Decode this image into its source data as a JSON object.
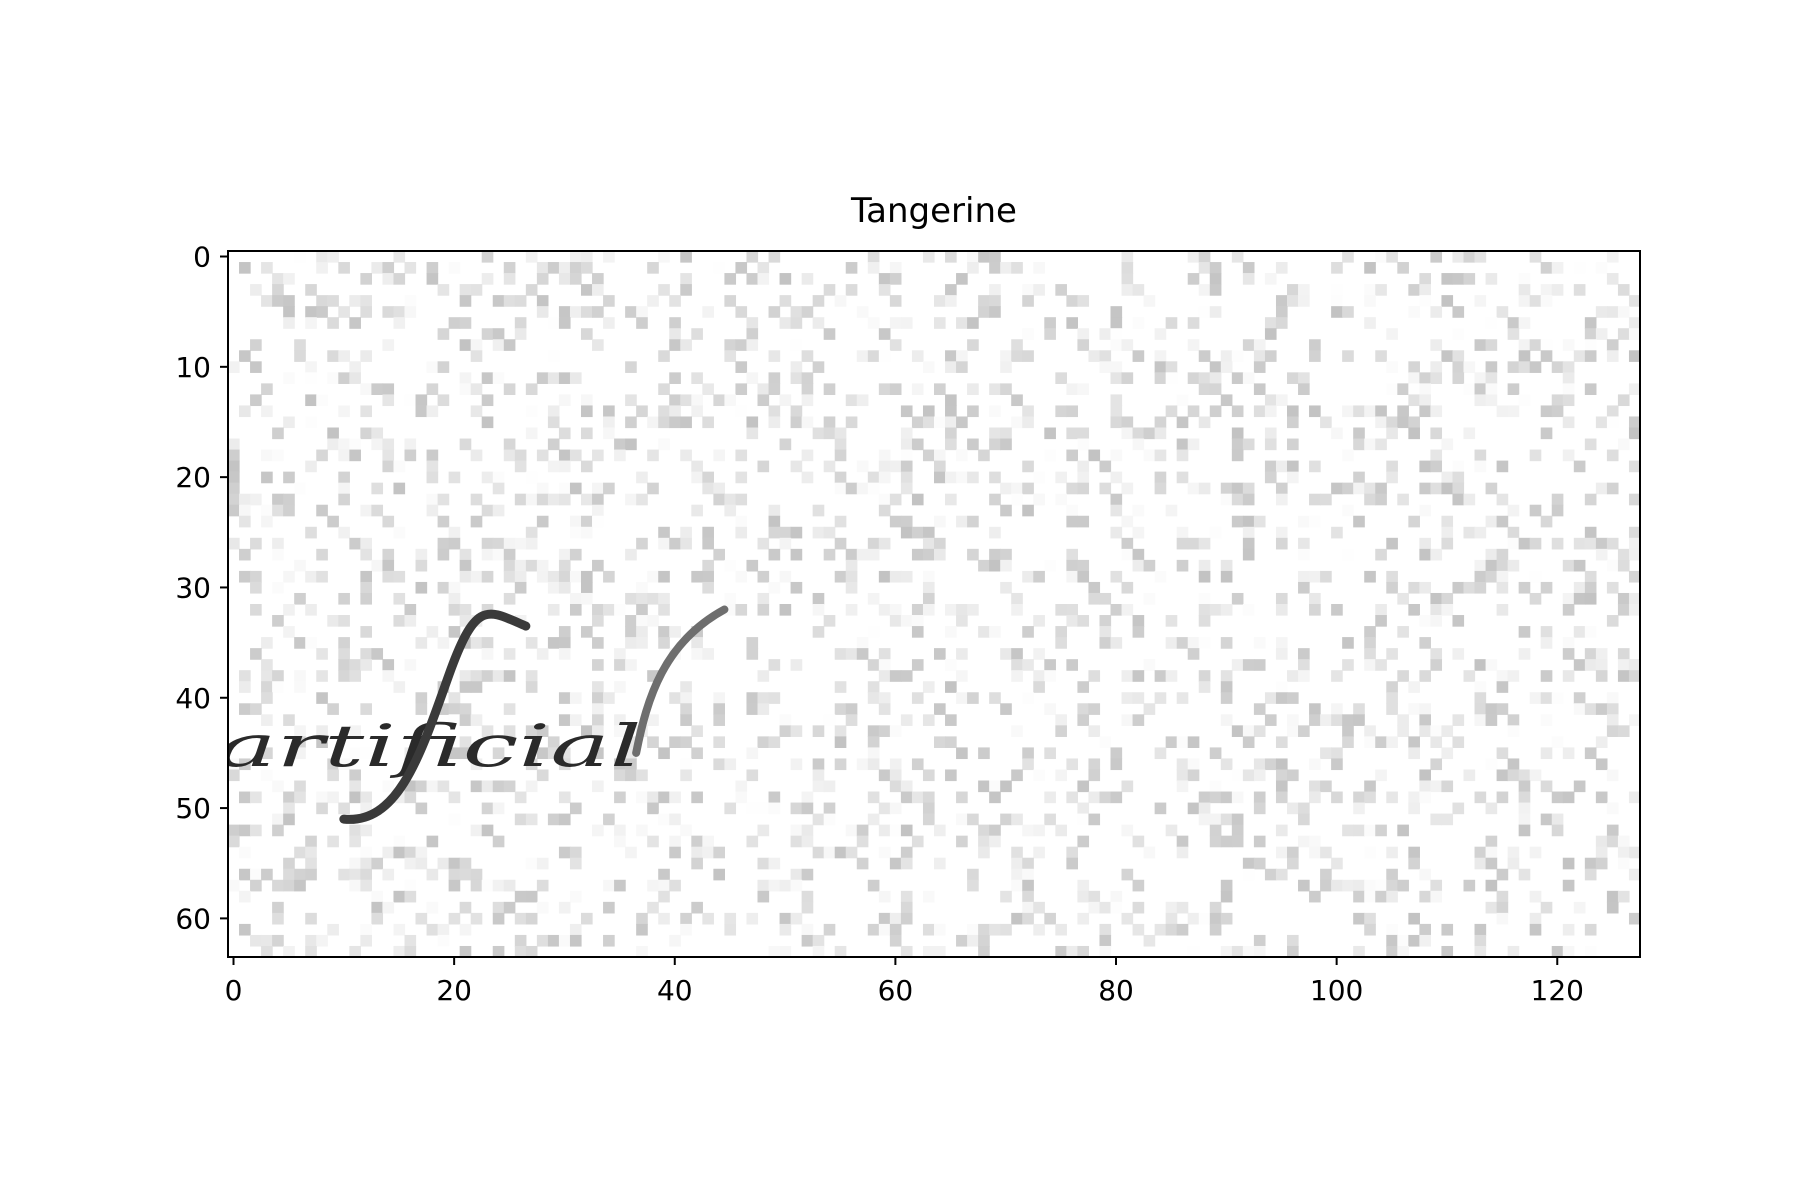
{
  "chart_data": {
    "type": "heatmap",
    "title": "Tangerine",
    "colormap": "gray_r",
    "image_width": 128,
    "image_height": 64,
    "xlim": [
      -0.5,
      127.5
    ],
    "ylim": [
      63.5,
      -0.5
    ],
    "x_ticks": [
      0,
      20,
      40,
      60,
      80,
      100,
      120
    ],
    "y_ticks": [
      0,
      10,
      20,
      30,
      40,
      50,
      60
    ],
    "x_tick_labels": [
      "0",
      "20",
      "40",
      "60",
      "80",
      "100",
      "120"
    ],
    "y_tick_labels": [
      "0",
      "10",
      "20",
      "30",
      "40",
      "50",
      "60"
    ],
    "image_text": "artificial",
    "background_noise": "light gray speckle",
    "grid": false,
    "legend": false
  },
  "colors": {
    "ink": "#1a1a1a",
    "background": "#ffffff",
    "axis": "#000000"
  }
}
